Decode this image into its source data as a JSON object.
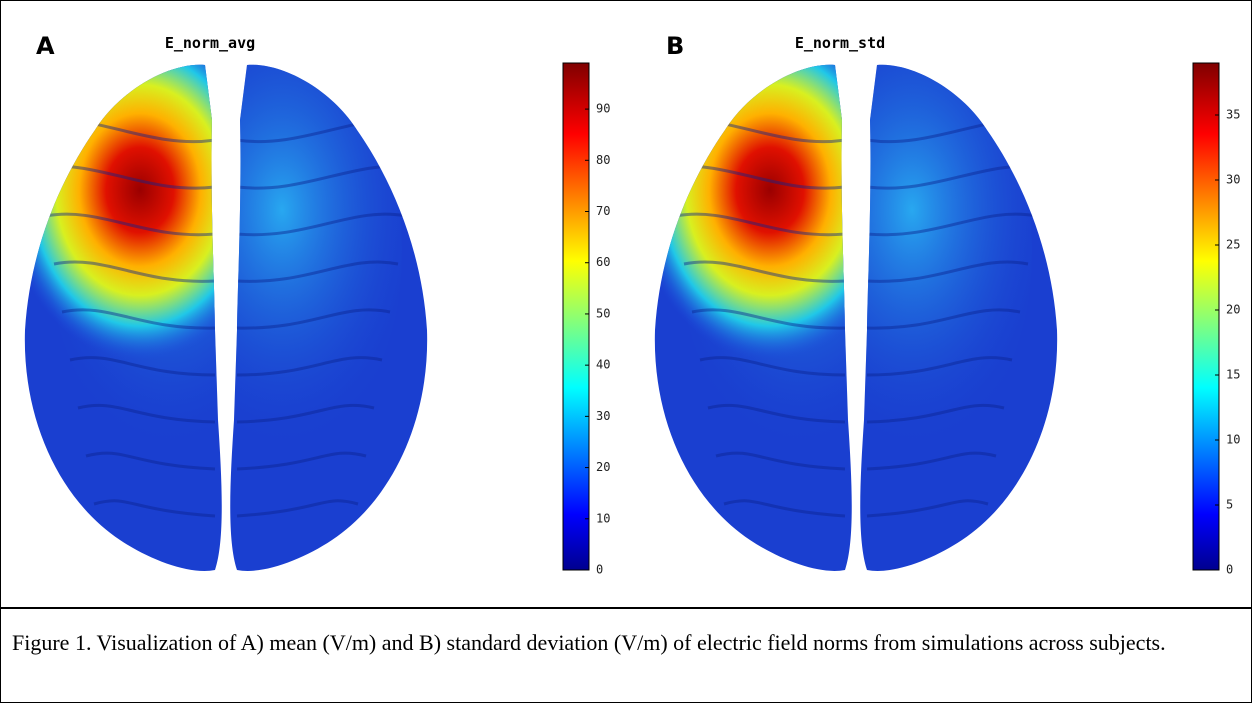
{
  "panels": [
    {
      "label": "A",
      "title": "E_norm_avg",
      "colorbar": {
        "lim": [
          0,
          99
        ],
        "ticks": [
          0,
          10,
          20,
          30,
          40,
          50,
          60,
          70,
          80,
          90
        ]
      }
    },
    {
      "label": "B",
      "title": "E_norm_std",
      "colorbar": {
        "lim": [
          0,
          39
        ],
        "ticks": [
          0,
          5,
          10,
          15,
          20,
          25,
          30,
          35
        ]
      }
    }
  ],
  "caption": "Figure 1. Visualization of A) mean (V/m) and B) standard deviation (V/m) of electric field norms from simulations across subjects."
}
